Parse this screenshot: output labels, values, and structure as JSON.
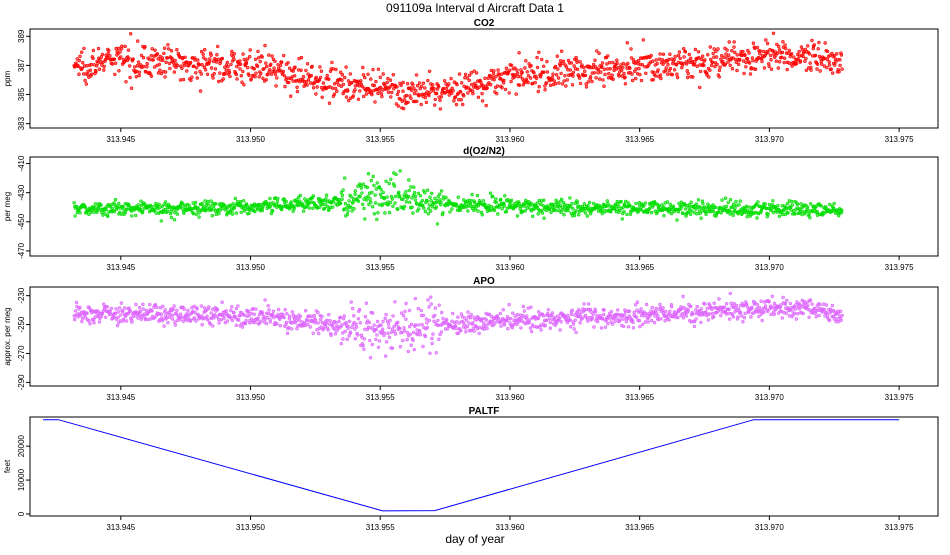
{
  "page": {
    "title": "091109a   Interval d Aircraft Data 1",
    "xlabel": "day of year"
  },
  "colors": {
    "co2": "#ff0000",
    "o2n2": "#00dd00",
    "apo": "#dd66ff",
    "paltf": "#0000ff",
    "axis": "#000000"
  },
  "chart_data": [
    {
      "type": "scatter",
      "title": "CO2",
      "ylabel": "ppm",
      "xlim": [
        313.9415,
        313.9765
      ],
      "ylim": [
        382.7,
        389.5
      ],
      "xticks": [
        313.945,
        313.95,
        313.955,
        313.96,
        313.965,
        313.97,
        313.975
      ],
      "xtick_labels": [
        "313.945",
        "313.950",
        "313.955",
        "313.960",
        "313.965",
        "313.970",
        "313.975"
      ],
      "yticks": [
        383,
        385,
        387,
        389
      ],
      "ytick_labels": [
        "383",
        "385",
        "387",
        "389"
      ],
      "x_range": [
        313.9432,
        313.9728
      ],
      "profile": {
        "x": [
          313.9432,
          313.945,
          313.95,
          313.9525,
          313.955,
          313.9565,
          313.958,
          313.96,
          313.9625,
          313.965,
          313.9675,
          313.97,
          313.9728
        ],
        "y": [
          387.0,
          387.4,
          386.9,
          386.1,
          385.3,
          385.0,
          385.4,
          386.2,
          386.6,
          387.0,
          387.2,
          387.6,
          387.5
        ]
      },
      "scatter_spread": 0.55,
      "series": [
        {
          "name": "CO2",
          "color": "#ff0000"
        }
      ]
    },
    {
      "type": "scatter",
      "title": "d(O2/N2)",
      "ylabel": "per meg",
      "xlim": [
        313.9415,
        313.9765
      ],
      "ylim": [
        -473.5,
        -405.5
      ],
      "xticks": [
        313.945,
        313.95,
        313.955,
        313.96,
        313.965,
        313.97,
        313.975
      ],
      "xtick_labels": [
        "313.945",
        "313.950",
        "313.955",
        "313.960",
        "313.965",
        "313.970",
        "313.975"
      ],
      "yticks": [
        -470,
        -450,
        -430,
        -410
      ],
      "ytick_labels": [
        "-470",
        "-450",
        "-430",
        "-410"
      ],
      "x_range": [
        313.9432,
        313.9728
      ],
      "profile": {
        "x": [
          313.9432,
          313.95,
          313.9535,
          313.955,
          313.9565,
          313.958,
          313.965,
          313.9728
        ],
        "y": [
          -441.0,
          -440.0,
          -436.0,
          -432.0,
          -436.0,
          -438.0,
          -441.0,
          -442.0
        ]
      },
      "scatter_spread": 2.5,
      "burst_range": [
        313.9535,
        313.9575
      ],
      "burst_spread": 10,
      "series": [
        {
          "name": "d(O2/N2)",
          "color": "#00dd00"
        }
      ]
    },
    {
      "type": "scatter",
      "title": "APO",
      "ylabel": "approx. per meg",
      "xlim": [
        313.9415,
        313.9765
      ],
      "ylim": [
        -292.5,
        -224.0
      ],
      "xticks": [
        313.945,
        313.95,
        313.955,
        313.96,
        313.965,
        313.97,
        313.975
      ],
      "xtick_labels": [
        "313.945",
        "313.950",
        "313.955",
        "313.960",
        "313.965",
        "313.970",
        "313.975"
      ],
      "yticks": [
        -290,
        -270,
        -250,
        -230
      ],
      "ytick_labels": [
        "-290",
        "-270",
        "-250",
        "-230"
      ],
      "x_range": [
        313.9432,
        313.9728
      ],
      "profile": {
        "x": [
          313.9432,
          313.95,
          313.955,
          313.96,
          313.965,
          313.97,
          313.9728
        ],
        "y": [
          -242.0,
          -244.0,
          -253.0,
          -247.0,
          -244.0,
          -238.0,
          -242.0
        ]
      },
      "scatter_spread": 3.5,
      "burst_range": [
        313.9535,
        313.9575
      ],
      "burst_spread": 11,
      "series": [
        {
          "name": "APO",
          "color": "#dd66ff"
        }
      ]
    },
    {
      "type": "line",
      "title": "PALTF",
      "ylabel": "feet",
      "xlim": [
        313.9415,
        313.9765
      ],
      "ylim": [
        -600,
        28600
      ],
      "xticks": [
        313.945,
        313.95,
        313.955,
        313.96,
        313.965,
        313.97,
        313.975
      ],
      "xtick_labels": [
        "313.945",
        "313.950",
        "313.955",
        "313.960",
        "313.965",
        "313.970",
        "313.975"
      ],
      "yticks": [
        0,
        10000,
        20000
      ],
      "ytick_labels": [
        "0",
        "10000",
        "20000"
      ],
      "series": [
        {
          "name": "PALTF",
          "color": "#0000ff",
          "x": [
            313.942,
            313.9426,
            313.9551,
            313.9571,
            313.9694,
            313.975
          ],
          "y": [
            27800,
            27800,
            900,
            1000,
            27800,
            27800
          ]
        }
      ]
    }
  ]
}
